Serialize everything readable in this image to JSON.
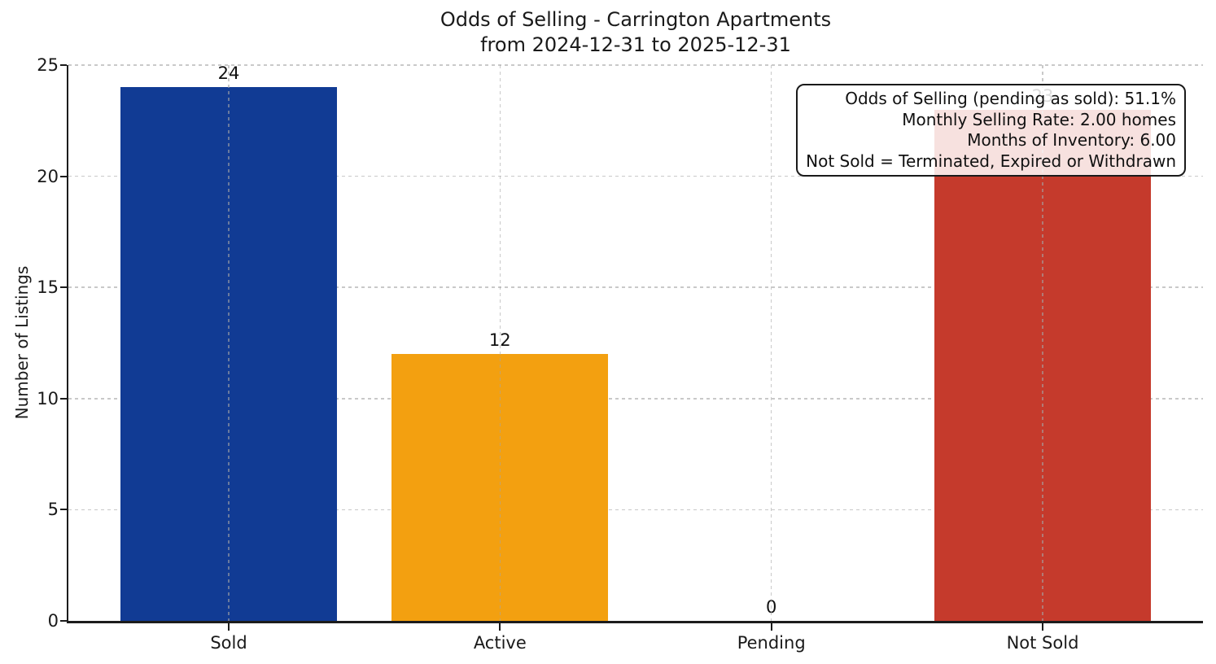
{
  "chart_data": {
    "type": "bar",
    "title": "Odds of Selling - Carrington Apartments",
    "subtitle": "from 2024-12-31 to 2025-12-31",
    "categories": [
      "Sold",
      "Active",
      "Pending",
      "Not Sold"
    ],
    "values": [
      24,
      12,
      0,
      23
    ],
    "value_labels": [
      "24",
      "12",
      "0",
      "23"
    ],
    "bar_colors": [
      "#113b94",
      "#f3a010",
      null,
      "#c53a2c"
    ],
    "xlabel": "",
    "ylabel": "Number of Listings",
    "ylim": [
      0,
      25
    ],
    "yticks": [
      0,
      5,
      10,
      15,
      20,
      25
    ],
    "grid": "dashed both axes, light gray; vertical gridlines drawn above bars",
    "legend": "none",
    "annotation": {
      "position": "top-right",
      "lines": [
        "Odds of Selling (pending as sold): 51.1%",
        "Monthly Selling Rate: 2.00 homes",
        "Months of Inventory: 6.00",
        "Not Sold = Terminated, Expired or Withdrawn"
      ]
    },
    "colors": {
      "sold_bar": "#113b94",
      "active_bar": "#f3a010",
      "not_sold_bar": "#c53a2c",
      "axis": "#1c1c1c",
      "gridline": "#d0d0d0",
      "annotation_background": "rgba(255,255,255,0.85)",
      "annotation_border": "#1a1a1a",
      "text": "#1a1a1a"
    }
  }
}
